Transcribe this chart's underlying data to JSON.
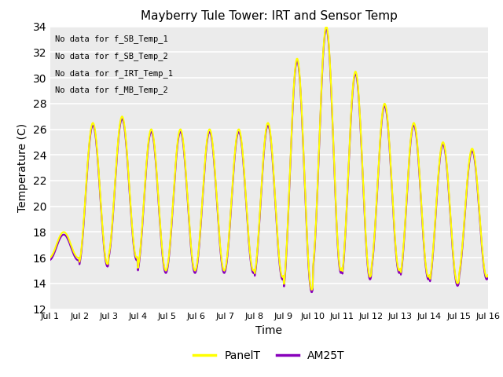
{
  "title": "Mayberry Tule Tower: IRT and Sensor Temp",
  "xlabel": "Time",
  "ylabel": "Temperature (C)",
  "ylim": [
    12,
    34
  ],
  "yticks": [
    12,
    14,
    16,
    18,
    20,
    22,
    24,
    26,
    28,
    30,
    32,
    34
  ],
  "bg_color": "#ebebeb",
  "panel_color": "#ffff00",
  "am25_color": "#8800bb",
  "legend_labels": [
    "PanelT",
    "AM25T"
  ],
  "no_data_texts": [
    "No data for f_SB_Temp_1",
    "No data for f_SB_Temp_2",
    "No data for f_IRT_Temp_1",
    "No data for f_MB_Temp_2"
  ],
  "x_tick_labels": [
    "Jul 1",
    "Jul 2",
    "Jul 3",
    "Jul 4",
    "Jul 5",
    "Jul 6",
    "Jul 7",
    "Jul 8",
    "Jul 9",
    "Jul 10",
    "Jul 11",
    "Jul 12",
    "Jul 13",
    "Jul 14",
    "Jul 15",
    "Jul 16"
  ],
  "day_params": {
    "bases": [
      17.0,
      21.0,
      21.5,
      20.5,
      20.5,
      20.5,
      20.5,
      20.5,
      22.5,
      24.5,
      22.5,
      21.5,
      20.5,
      19.5,
      19.5
    ],
    "amps": [
      1.0,
      5.5,
      5.5,
      5.5,
      5.5,
      5.5,
      5.5,
      6.0,
      9.0,
      9.5,
      8.0,
      6.5,
      6.0,
      5.5,
      5.0
    ],
    "phase": 0.21
  }
}
